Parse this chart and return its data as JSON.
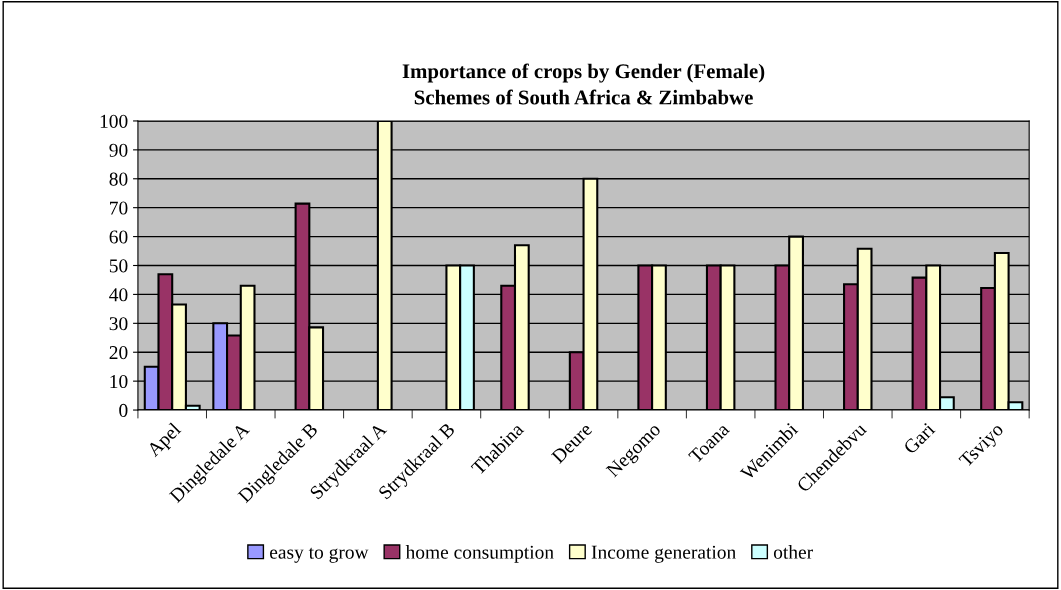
{
  "chart_data": {
    "type": "bar",
    "title": "Importance of crops by Gender (Female)\nSchemes of South Africa & Zimbabwe",
    "categories": [
      "Apel",
      "Dingledale A",
      "Dingledale B",
      "Strydkraal A",
      "Strydkraal B",
      "Thabina",
      "Deure",
      "Negomo",
      "Toana",
      "Wenimbi",
      "Chendebvu",
      "Gari",
      "Tsviyo"
    ],
    "series": [
      {
        "name": "easy to grow",
        "color": "#9999ff",
        "values": [
          15,
          30,
          null,
          null,
          null,
          null,
          null,
          null,
          null,
          null,
          null,
          null,
          null
        ]
      },
      {
        "name": "home consumption",
        "color": "#993366",
        "values": [
          47,
          25.8,
          71.4,
          null,
          null,
          43,
          20,
          50,
          50,
          50,
          43.5,
          45.8,
          42.2
        ]
      },
      {
        "name": "Income generation",
        "color": "#ffffcc",
        "values": [
          36.5,
          43,
          28.6,
          100,
          50,
          57,
          80,
          50,
          50,
          60,
          55.8,
          50,
          54.3
        ]
      },
      {
        "name": "other",
        "color": "#ccffff",
        "values": [
          1.5,
          null,
          null,
          null,
          50,
          null,
          null,
          null,
          null,
          null,
          null,
          4.4,
          2.7
        ]
      }
    ],
    "ylim": [
      0,
      100
    ],
    "yticks": [
      0,
      10,
      20,
      30,
      40,
      50,
      60,
      70,
      80,
      90,
      100
    ],
    "grid": "y",
    "legend": "bottom"
  }
}
